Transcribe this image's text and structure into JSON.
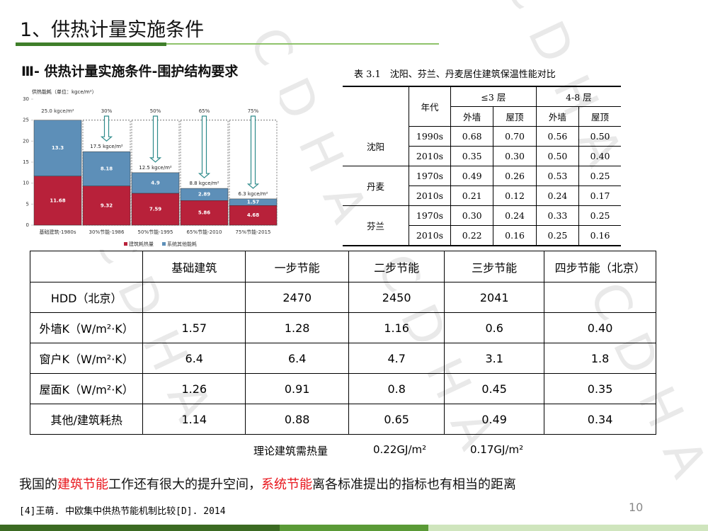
{
  "header": {
    "title": "1、供热计量实施条件",
    "subtitle": "Ⅲ- 供热计量实施条件-围护结构要求"
  },
  "watermark": "CDHA",
  "chart_data": {
    "type": "bar",
    "stacked": true,
    "title": "供热能耗（单位：kgce/m²）",
    "categories": [
      "基础建筑-1980s",
      "30%节能-1986",
      "50%节能-1995",
      "65%节能-2010",
      "75%节能-2015"
    ],
    "series": [
      {
        "name": "建筑耗热量",
        "color": "#b8213a",
        "values": [
          11.68,
          9.32,
          7.59,
          5.86,
          4.68
        ]
      },
      {
        "name": "系统其他能耗",
        "color": "#5d8fb8",
        "values": [
          13.3,
          8.18,
          4.9,
          2.89,
          1.57
        ]
      }
    ],
    "top_labels": [
      "25.0 kgce/m²",
      "30%",
      "50%",
      "65%",
      "75%"
    ],
    "total_labels": [
      null,
      "17.5 kgce/m²",
      "12.5 kgce/m²",
      "8.8 kgce/m²",
      "6.3 kgce/m²"
    ],
    "ylim": [
      0,
      30
    ],
    "yticks": [
      0,
      5,
      10,
      15,
      20,
      25,
      30
    ],
    "grid": false
  },
  "right_table": {
    "caption": "表 3.1　沈阳、芬兰、丹麦居住建筑保温性能对比",
    "period_header": "年代",
    "groups": [
      "≤3 层",
      "4-8 层"
    ],
    "sub_headers": [
      "外墙",
      "屋顶",
      "外墙",
      "屋顶"
    ],
    "rows": [
      {
        "city": "沈阳",
        "periods": [
          {
            "year": "1990s",
            "values": [
              "0.68",
              "0.70",
              "0.56",
              "0.50"
            ]
          },
          {
            "year": "2010s",
            "values": [
              "0.35",
              "0.30",
              "0.50",
              "0.40"
            ]
          }
        ]
      },
      {
        "city": "丹麦",
        "periods": [
          {
            "year": "1970s",
            "values": [
              "0.49",
              "0.26",
              "0.53",
              "0.25"
            ]
          },
          {
            "year": "2010s",
            "values": [
              "0.21",
              "0.12",
              "0.24",
              "0.17"
            ]
          }
        ]
      },
      {
        "city": "芬兰",
        "periods": [
          {
            "year": "1970s",
            "values": [
              "0.30",
              "0.24",
              "0.33",
              "0.25"
            ]
          },
          {
            "year": "2010s",
            "values": [
              "0.22",
              "0.16",
              "0.25",
              "0.16"
            ]
          }
        ]
      }
    ]
  },
  "main_table": {
    "header": [
      null,
      "基础建筑",
      "一步节能",
      "二步节能",
      "三步节能",
      "四步节能（北京）"
    ],
    "rows": [
      [
        "HDD（北京）",
        null,
        "2470",
        "2450",
        "2041",
        null
      ],
      [
        "外墙K（W/m²·K）",
        "1.57",
        "1.28",
        "1.16",
        "0.6",
        "0.40"
      ],
      [
        "窗户K（W/m²·K）",
        "6.4",
        "6.4",
        "4.7",
        "3.1",
        "1.8"
      ],
      [
        "屋面K（W/m²·K）",
        "1.26",
        "0.91",
        "0.8",
        "0.45",
        "0.35"
      ],
      [
        "其他/建筑耗热",
        "1.14",
        "0.88",
        "0.65",
        "0.49",
        "0.34"
      ]
    ]
  },
  "theory": {
    "label": "理论建筑需热量",
    "values": [
      "0.22GJ/m²",
      "0.17GJ/m²"
    ]
  },
  "conclusion": [
    {
      "text": "我国的"
    },
    {
      "text": "建筑节能",
      "highlight": true
    },
    {
      "text": "工作还有很大的提升空间，"
    },
    {
      "text": "系统节能",
      "highlight": true
    },
    {
      "text": "离各标准提出的指标也有相当的距离"
    }
  ],
  "citation": "[4]王萌. 中欧集中供热节能机制比较[D]. 2014",
  "page_number": "10"
}
